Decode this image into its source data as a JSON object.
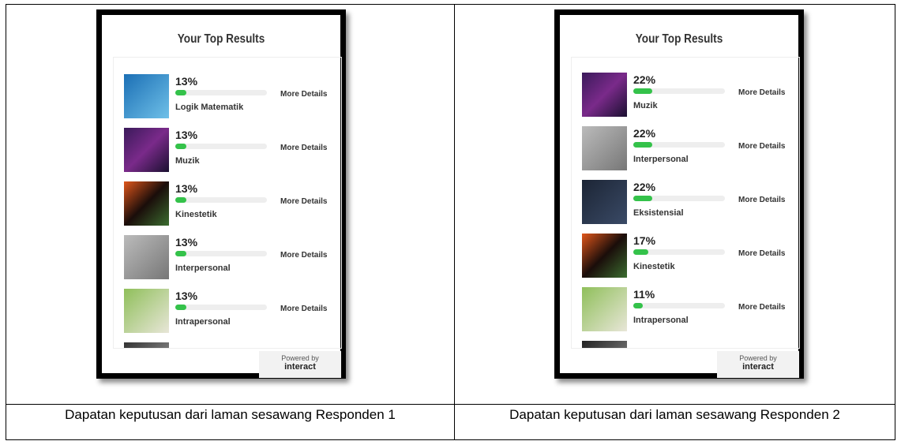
{
  "table": {
    "rows": [
      [
        {
          "title": "Your Top Results",
          "action": "More Details",
          "footer": {
            "line1": "Powered by",
            "brand": "interact"
          },
          "results": [
            {
              "value": 13,
              "label": "13%",
              "name": "Logik Matematik"
            },
            {
              "value": 13,
              "label": "13%",
              "name": "Muzik"
            },
            {
              "value": 13,
              "label": "13%",
              "name": "Kinestetik"
            },
            {
              "value": 13,
              "label": "13%",
              "name": "Interpersonal"
            },
            {
              "value": 13,
              "label": "13%",
              "name": "Intrapersonal"
            }
          ]
        },
        {
          "title": "Your Top Results",
          "action": "More Details",
          "footer": {
            "line1": "Powered by",
            "brand": "interact"
          },
          "results": [
            {
              "value": 22,
              "label": "22%",
              "name": "Muzik"
            },
            {
              "value": 22,
              "label": "22%",
              "name": "Interpersonal"
            },
            {
              "value": 22,
              "label": "22%",
              "name": "Eksistensial"
            },
            {
              "value": 17,
              "label": "17%",
              "name": "Kinestetik"
            },
            {
              "value": 11,
              "label": "11%",
              "name": "Intrapersonal"
            }
          ]
        }
      ],
      [
        "Dapatan keputusan dari laman sesawang Responden 1",
        "Dapatan keputusan dari laman sesawang Responden 2"
      ]
    ]
  }
}
